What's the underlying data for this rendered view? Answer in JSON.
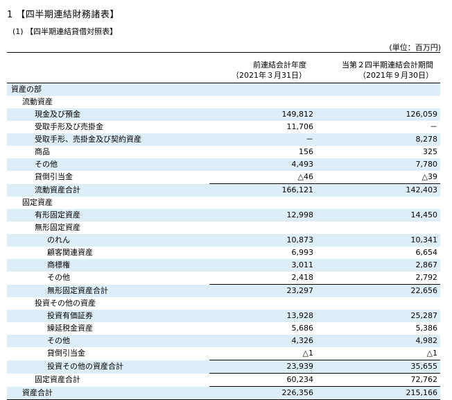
{
  "title": "1 【四半期連結財務諸表】",
  "subtitle": "(1) 【四半期連結貸借対照表】",
  "unit": "(単位：百万円)",
  "header": {
    "col_prev": [
      "前連結会計年度",
      "（2021年３月31日）"
    ],
    "col_curr": [
      "当第２四半期連結会計期間",
      "（2021年９月30日）"
    ]
  },
  "rows": [
    {
      "label": "資産の部",
      "prev": "",
      "curr": "",
      "level": 0,
      "blue": true,
      "total": false
    },
    {
      "label": "流動資産",
      "prev": "",
      "curr": "",
      "level": 1,
      "blue": false,
      "total": false
    },
    {
      "label": "現金及び預金",
      "prev": "149,812",
      "curr": "126,059",
      "level": 2,
      "blue": true,
      "total": false
    },
    {
      "label": "受取手形及び売掛金",
      "prev": "11,706",
      "curr": "－",
      "level": 2,
      "blue": false,
      "total": false
    },
    {
      "label": "受取手形、売掛金及び契約資産",
      "prev": "－",
      "curr": "8,278",
      "level": 2,
      "blue": true,
      "total": false
    },
    {
      "label": "商品",
      "prev": "156",
      "curr": "325",
      "level": 2,
      "blue": false,
      "total": false
    },
    {
      "label": "その他",
      "prev": "4,493",
      "curr": "7,780",
      "level": 2,
      "blue": true,
      "total": false
    },
    {
      "label": "貸倒引当金",
      "prev": "△46",
      "curr": "△39",
      "level": 2,
      "blue": false,
      "total": false
    },
    {
      "label": "流動資産合計",
      "prev": "166,121",
      "curr": "142,403",
      "level": 2,
      "blue": true,
      "total": true
    },
    {
      "label": "固定資産",
      "prev": "",
      "curr": "",
      "level": 1,
      "blue": false,
      "total": false
    },
    {
      "label": "有形固定資産",
      "prev": "12,998",
      "curr": "14,450",
      "level": 2,
      "blue": true,
      "total": false
    },
    {
      "label": "無形固定資産",
      "prev": "",
      "curr": "",
      "level": 2,
      "blue": false,
      "total": false
    },
    {
      "label": "のれん",
      "prev": "10,873",
      "curr": "10,341",
      "level": 3,
      "blue": true,
      "total": false
    },
    {
      "label": "顧客関連資産",
      "prev": "6,993",
      "curr": "6,654",
      "level": 3,
      "blue": false,
      "total": false
    },
    {
      "label": "商標権",
      "prev": "3,011",
      "curr": "2,867",
      "level": 3,
      "blue": true,
      "total": false
    },
    {
      "label": "その他",
      "prev": "2,418",
      "curr": "2,792",
      "level": 3,
      "blue": false,
      "total": false
    },
    {
      "label": "無形固定資産合計",
      "prev": "23,297",
      "curr": "22,656",
      "level": 3,
      "blue": true,
      "total": true
    },
    {
      "label": "投資その他の資産",
      "prev": "",
      "curr": "",
      "level": 2,
      "blue": false,
      "total": false
    },
    {
      "label": "投資有価証券",
      "prev": "13,928",
      "curr": "25,287",
      "level": 3,
      "blue": true,
      "total": false
    },
    {
      "label": "繰延税金資産",
      "prev": "5,686",
      "curr": "5,386",
      "level": 3,
      "blue": false,
      "total": false
    },
    {
      "label": "その他",
      "prev": "4,326",
      "curr": "4,982",
      "level": 3,
      "blue": true,
      "total": false
    },
    {
      "label": "貸倒引当金",
      "prev": "△1",
      "curr": "△1",
      "level": 3,
      "blue": false,
      "total": false
    },
    {
      "label": "投資その他の資産合計",
      "prev": "23,939",
      "curr": "35,655",
      "level": 3,
      "blue": true,
      "total": true
    },
    {
      "label": "固定資産合計",
      "prev": "60,234",
      "curr": "72,762",
      "level": 2,
      "blue": false,
      "total": true
    },
    {
      "label": "資産合計",
      "prev": "226,356",
      "curr": "215,166",
      "level": 1,
      "blue": true,
      "total": true
    }
  ]
}
